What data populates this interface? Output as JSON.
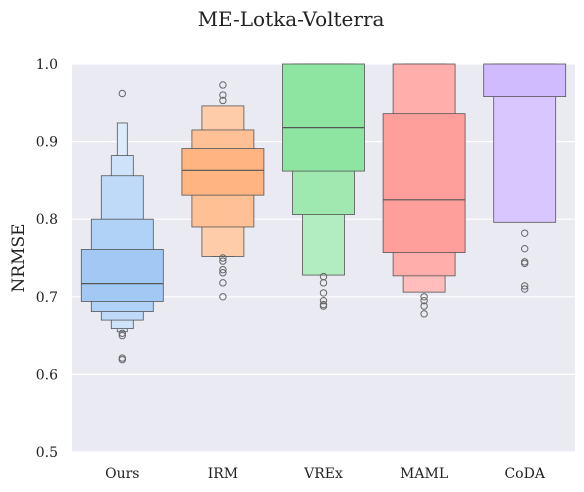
{
  "chart_data": {
    "type": "boxenplot",
    "title": "ME-Lotka-Volterra",
    "xlabel": "",
    "ylabel": "NRMSE",
    "ylim": [
      0.5,
      1.0
    ],
    "yticks": [
      "0.5",
      "0.6",
      "0.7",
      "0.8",
      "0.9",
      "1.0"
    ],
    "grid": true,
    "categories": [
      "Ours",
      "IRM",
      "VREx",
      "MAML",
      "CoDA"
    ],
    "colors": [
      "#a1c9f4",
      "#ffb482",
      "#8de5a1",
      "#ff9f9b",
      "#d0bbff"
    ],
    "series": [
      {
        "category": "Ours",
        "median": 0.717,
        "boxes": [
          [
            0.694,
            0.761
          ],
          [
            0.681,
            0.8
          ],
          [
            0.67,
            0.856
          ],
          [
            0.659,
            0.882
          ],
          [
            0.655,
            0.924
          ]
        ],
        "outliers": [
          0.962,
          0.653,
          0.65,
          0.621,
          0.619
        ]
      },
      {
        "category": "IRM",
        "median": 0.863,
        "boxes": [
          [
            0.831,
            0.891
          ],
          [
            0.79,
            0.915
          ],
          [
            0.752,
            0.946
          ],
          [
            0.752,
            0.946
          ]
        ],
        "outliers": [
          0.973,
          0.96,
          0.953,
          0.75,
          0.746,
          0.735,
          0.731,
          0.718,
          0.7
        ]
      },
      {
        "category": "VREx",
        "median": 0.918,
        "boxes": [
          [
            0.862,
            1.0
          ],
          [
            0.806,
            1.0
          ],
          [
            0.728,
            1.0
          ]
        ],
        "outliers": [
          0.726,
          0.718,
          0.705,
          0.695,
          0.69,
          0.688
        ]
      },
      {
        "category": "MAML",
        "median": 0.825,
        "boxes": [
          [
            0.757,
            0.936
          ],
          [
            0.727,
            1.0
          ],
          [
            0.706,
            1.0
          ]
        ],
        "outliers": [
          0.7,
          0.695,
          0.688,
          0.678
        ]
      },
      {
        "category": "CoDA",
        "median": 1.0,
        "boxes": [
          [
            0.958,
            1.0
          ],
          [
            0.796,
            1.0
          ]
        ],
        "outliers": [
          0.782,
          0.762,
          0.745,
          0.743,
          0.714,
          0.71
        ]
      }
    ]
  }
}
